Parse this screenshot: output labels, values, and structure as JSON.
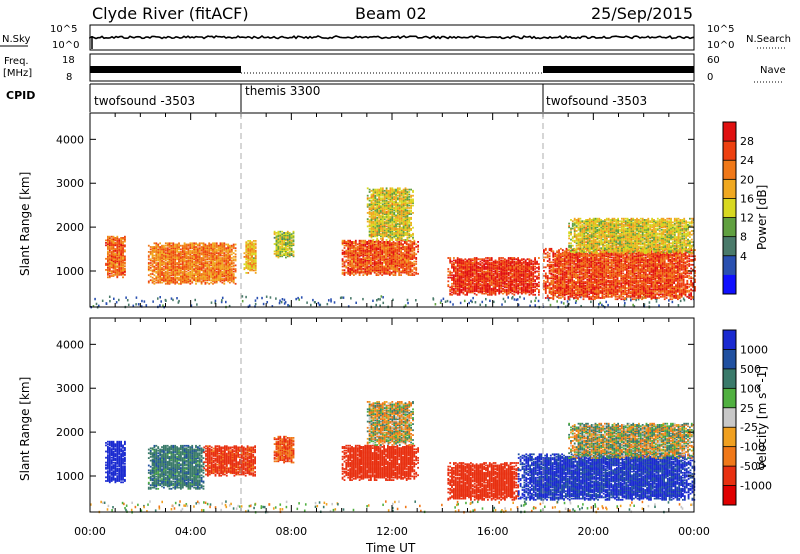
{
  "header": {
    "station": "Clyde River (fitACF)",
    "beam": "Beam 02",
    "date": "25/Sep/2015"
  },
  "top_panels": {
    "nsky_label": "N.Sky",
    "nsky_ticks": [
      "10^5",
      "10^0"
    ],
    "nsearch_label": "N.Search",
    "nsearch_ticks": [
      "10^5",
      "10^0"
    ],
    "freq_label": "Freq.",
    "freq_unit": "[MHz]",
    "freq_ticks": [
      "18",
      "8"
    ],
    "nave_label": "Nave",
    "nave_ticks": [
      "60",
      "0"
    ],
    "cpid_label": "CPID",
    "cpid_segments": [
      {
        "name": "twofsound -3503",
        "start_h": 0,
        "end_h": 6
      },
      {
        "name": "themis 3300",
        "start_h": 6,
        "end_h": 18
      },
      {
        "name": "twofsound -3503",
        "start_h": 18,
        "end_h": 24
      }
    ]
  },
  "colorbars": {
    "power": {
      "label": "Power [dB]",
      "ticks": [
        "28",
        "24",
        "20",
        "16",
        "12",
        "8",
        "4"
      ],
      "colors": [
        "#e01010",
        "#ee4010",
        "#f07818",
        "#f0a820",
        "#d8d820",
        "#60a040",
        "#4a7a6a",
        "#2a50b0",
        "#1010ff"
      ]
    },
    "velocity": {
      "label": "Velocity [m s^-1]",
      "ticks": [
        "1000",
        "500",
        "100",
        "25",
        "-25",
        "-100",
        "-500",
        "-1000"
      ],
      "colors": [
        "#1a2ad0",
        "#2050a0",
        "#3a7a6a",
        "#50b040",
        "#c8c8c8",
        "#f0a020",
        "#f07818",
        "#e83010",
        "#e00000"
      ]
    }
  },
  "chart_data": [
    {
      "type": "heatmap",
      "name": "power",
      "xlabel": "",
      "ylabel": "Slant Range [km]",
      "xlim": [
        0,
        24
      ],
      "ylim": [
        180,
        4600
      ],
      "y_ticks": [
        1000,
        2000,
        3000,
        4000
      ],
      "cpid_boundaries_h": [
        6,
        18
      ],
      "patches": [
        {
          "x": [
            0.6,
            1.4
          ],
          "y": [
            850,
            1800
          ],
          "value": 24
        },
        {
          "x": [
            2.3,
            5.8
          ],
          "y": [
            700,
            1650
          ],
          "value": 22
        },
        {
          "x": [
            6.1,
            6.6
          ],
          "y": [
            950,
            1700
          ],
          "value": 18
        },
        {
          "x": [
            7.3,
            8.1
          ],
          "y": [
            1300,
            1900
          ],
          "value": 14
        },
        {
          "x": [
            10.0,
            13.0
          ],
          "y": [
            900,
            1700
          ],
          "value": 25
        },
        {
          "x": [
            11.0,
            12.8
          ],
          "y": [
            1700,
            2900
          ],
          "value": 16
        },
        {
          "x": [
            14.2,
            17.8
          ],
          "y": [
            450,
            1300
          ],
          "value": 28
        },
        {
          "x": [
            18.0,
            24.0
          ],
          "y": [
            350,
            1500
          ],
          "value": 26
        },
        {
          "x": [
            19.0,
            24.0
          ],
          "y": [
            1400,
            2200
          ],
          "value": 16
        }
      ]
    },
    {
      "type": "heatmap",
      "name": "velocity",
      "xlabel": "Time UT",
      "ylabel": "Slant Range [km]",
      "xlim": [
        0,
        24
      ],
      "ylim": [
        180,
        4600
      ],
      "y_ticks": [
        1000,
        2000,
        3000,
        4000
      ],
      "x_ticks": [
        "00:00",
        "04:00",
        "08:00",
        "12:00",
        "16:00",
        "20:00",
        "00:00"
      ],
      "cpid_boundaries_h": [
        6,
        18
      ],
      "patches": [
        {
          "x": [
            0.6,
            1.4
          ],
          "y": [
            850,
            1800
          ],
          "value": 900
        },
        {
          "x": [
            2.3,
            4.5
          ],
          "y": [
            700,
            1700
          ],
          "value": 200
        },
        {
          "x": [
            4.5,
            6.6
          ],
          "y": [
            1000,
            1700
          ],
          "value": -400
        },
        {
          "x": [
            7.3,
            8.1
          ],
          "y": [
            1300,
            1900
          ],
          "value": -300
        },
        {
          "x": [
            10.0,
            13.0
          ],
          "y": [
            900,
            1700
          ],
          "value": -500
        },
        {
          "x": [
            11.0,
            12.8
          ],
          "y": [
            1700,
            2700
          ],
          "value": -20
        },
        {
          "x": [
            14.2,
            17.0
          ],
          "y": [
            450,
            1300
          ],
          "value": -600
        },
        {
          "x": [
            17.0,
            24.0
          ],
          "y": [
            450,
            1500
          ],
          "value": 800
        },
        {
          "x": [
            19.0,
            24.0
          ],
          "y": [
            1400,
            2200
          ],
          "value": 10
        }
      ]
    }
  ]
}
